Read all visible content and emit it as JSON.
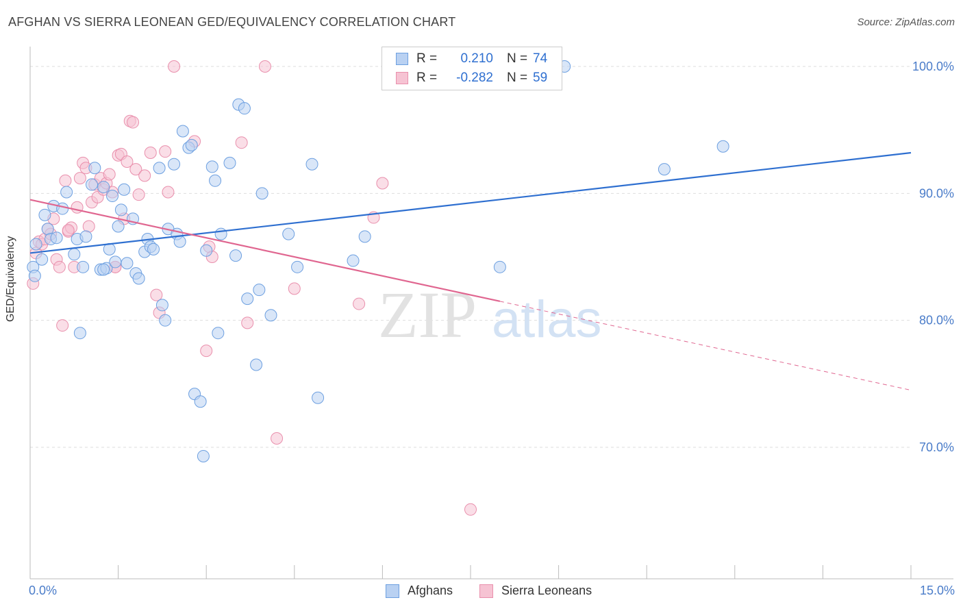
{
  "title": "AFGHAN VS SIERRA LEONEAN GED/EQUIVALENCY CORRELATION CHART",
  "source": "Source: ZipAtlas.com",
  "colors": {
    "afghan": "#6c9fe0",
    "afghan_fill": "#b9d1f2",
    "afghan_line": "#2e6fd0",
    "sierra": "#e98fac",
    "sierra_fill": "#f6c3d3",
    "sierra_line": "#e06690",
    "tick_text": "#4a7cc9",
    "value_text": "#2e6fd0"
  },
  "legend": {
    "rows": [
      {
        "r_label": "R =",
        "r_value": "0.210",
        "n_label": "N =",
        "n_value": "74"
      },
      {
        "r_label": "R =",
        "r_value": "-0.282",
        "n_label": "N =",
        "n_value": "59"
      }
    ]
  },
  "bottom_legend": [
    "Afghans",
    "Sierra Leoneans"
  ],
  "chart_data": {
    "type": "scatter",
    "title": "AFGHAN VS SIERRA LEONEAN GED/EQUIVALENCY CORRELATION CHART",
    "xlabel": "",
    "ylabel": "GED/Equivalency",
    "xlim": [
      0,
      15
    ],
    "ylim": [
      60,
      101
    ],
    "x_tick_labels": [
      "0.0%",
      "15.0%"
    ],
    "y_ticks": [
      70,
      80,
      90,
      100
    ],
    "y_tick_labels": [
      "70.0%",
      "80.0%",
      "90.0%",
      "100.0%"
    ],
    "grid": true,
    "legend_position": "top-center",
    "watermark": "ZIPatlas",
    "series": [
      {
        "name": "Afghans",
        "r": 0.21,
        "n": 74,
        "trend": {
          "x": [
            0.0,
            15.0
          ],
          "y": [
            85.3,
            93.2
          ]
        },
        "points": [
          [
            0.05,
            84.2
          ],
          [
            0.08,
            83.5
          ],
          [
            0.1,
            86.0
          ],
          [
            0.2,
            84.8
          ],
          [
            0.25,
            88.3
          ],
          [
            0.3,
            87.2
          ],
          [
            0.35,
            86.4
          ],
          [
            0.4,
            89.0
          ],
          [
            0.45,
            86.5
          ],
          [
            0.55,
            88.8
          ],
          [
            0.62,
            90.1
          ],
          [
            0.75,
            85.2
          ],
          [
            0.8,
            86.4
          ],
          [
            0.85,
            79.0
          ],
          [
            0.9,
            84.2
          ],
          [
            0.95,
            86.6
          ],
          [
            1.05,
            90.7
          ],
          [
            1.1,
            92.0
          ],
          [
            1.2,
            84.0
          ],
          [
            1.25,
            90.5
          ],
          [
            1.3,
            84.1
          ],
          [
            1.35,
            85.6
          ],
          [
            1.4,
            89.8
          ],
          [
            1.45,
            84.6
          ],
          [
            1.5,
            87.4
          ],
          [
            1.55,
            88.7
          ],
          [
            1.6,
            90.3
          ],
          [
            1.65,
            84.5
          ],
          [
            1.75,
            88.0
          ],
          [
            1.8,
            83.7
          ],
          [
            1.85,
            83.3
          ],
          [
            1.95,
            85.4
          ],
          [
            2.0,
            86.4
          ],
          [
            2.05,
            85.8
          ],
          [
            2.1,
            85.6
          ],
          [
            2.2,
            92.0
          ],
          [
            2.25,
            81.2
          ],
          [
            2.3,
            80.0
          ],
          [
            2.35,
            87.2
          ],
          [
            2.45,
            92.3
          ],
          [
            2.5,
            86.8
          ],
          [
            2.55,
            86.2
          ],
          [
            2.6,
            94.9
          ],
          [
            2.7,
            93.6
          ],
          [
            2.75,
            93.8
          ],
          [
            2.8,
            74.2
          ],
          [
            2.9,
            73.6
          ],
          [
            3.0,
            85.5
          ],
          [
            3.1,
            92.1
          ],
          [
            3.15,
            91.0
          ],
          [
            3.2,
            79.0
          ],
          [
            3.25,
            86.8
          ],
          [
            3.4,
            92.4
          ],
          [
            3.5,
            85.1
          ],
          [
            3.55,
            97.0
          ],
          [
            3.65,
            96.7
          ],
          [
            3.7,
            81.7
          ],
          [
            3.85,
            76.5
          ],
          [
            3.9,
            82.4
          ],
          [
            3.95,
            90.0
          ],
          [
            4.1,
            80.4
          ],
          [
            4.4,
            86.8
          ],
          [
            4.55,
            84.2
          ],
          [
            4.8,
            92.3
          ],
          [
            4.9,
            73.9
          ],
          [
            5.5,
            84.7
          ],
          [
            5.7,
            86.6
          ],
          [
            7.2,
            100.0
          ],
          [
            8.0,
            84.2
          ],
          [
            9.1,
            100.0
          ],
          [
            10.8,
            91.9
          ],
          [
            11.8,
            93.7
          ],
          [
            2.95,
            69.3
          ],
          [
            1.25,
            84.0
          ]
        ]
      },
      {
        "name": "Sierra Leoneans",
        "r": -0.282,
        "n": 59,
        "trend": {
          "x": [
            0.0,
            8.0
          ],
          "y": [
            89.5,
            81.5
          ]
        },
        "trend_dashed": {
          "x": [
            8.0,
            15.0
          ],
          "y": [
            81.5,
            74.5
          ]
        },
        "points": [
          [
            0.05,
            82.9
          ],
          [
            0.1,
            85.3
          ],
          [
            0.15,
            86.2
          ],
          [
            0.2,
            86.0
          ],
          [
            0.25,
            86.4
          ],
          [
            0.3,
            87.2
          ],
          [
            0.35,
            86.8
          ],
          [
            0.4,
            88.0
          ],
          [
            0.45,
            84.8
          ],
          [
            0.5,
            84.2
          ],
          [
            0.55,
            79.6
          ],
          [
            0.6,
            91.0
          ],
          [
            0.65,
            87.0
          ],
          [
            0.7,
            87.3
          ],
          [
            0.75,
            84.2
          ],
          [
            0.8,
            88.9
          ],
          [
            0.85,
            91.2
          ],
          [
            0.9,
            92.4
          ],
          [
            0.95,
            92.0
          ],
          [
            1.0,
            87.4
          ],
          [
            1.05,
            89.3
          ],
          [
            1.1,
            90.7
          ],
          [
            1.15,
            89.7
          ],
          [
            1.2,
            91.2
          ],
          [
            1.25,
            90.3
          ],
          [
            1.3,
            90.8
          ],
          [
            1.35,
            91.5
          ],
          [
            1.4,
            90.1
          ],
          [
            1.45,
            84.2
          ],
          [
            1.5,
            93.0
          ],
          [
            1.55,
            93.1
          ],
          [
            1.6,
            88.0
          ],
          [
            1.65,
            92.5
          ],
          [
            1.7,
            95.7
          ],
          [
            1.75,
            95.6
          ],
          [
            1.8,
            91.9
          ],
          [
            1.85,
            89.9
          ],
          [
            1.95,
            91.4
          ],
          [
            2.05,
            93.2
          ],
          [
            2.15,
            82.0
          ],
          [
            2.2,
            80.6
          ],
          [
            2.3,
            93.3
          ],
          [
            2.35,
            90.1
          ],
          [
            2.45,
            100.0
          ],
          [
            2.8,
            94.1
          ],
          [
            3.0,
            77.6
          ],
          [
            3.05,
            85.8
          ],
          [
            3.1,
            85.0
          ],
          [
            3.6,
            94.0
          ],
          [
            3.7,
            79.8
          ],
          [
            4.0,
            100.0
          ],
          [
            4.2,
            70.7
          ],
          [
            4.5,
            82.5
          ],
          [
            5.6,
            81.3
          ],
          [
            5.85,
            88.1
          ],
          [
            6.0,
            90.8
          ],
          [
            7.5,
            65.1
          ],
          [
            1.45,
            84.2
          ],
          [
            0.65,
            87.1
          ]
        ]
      }
    ]
  }
}
